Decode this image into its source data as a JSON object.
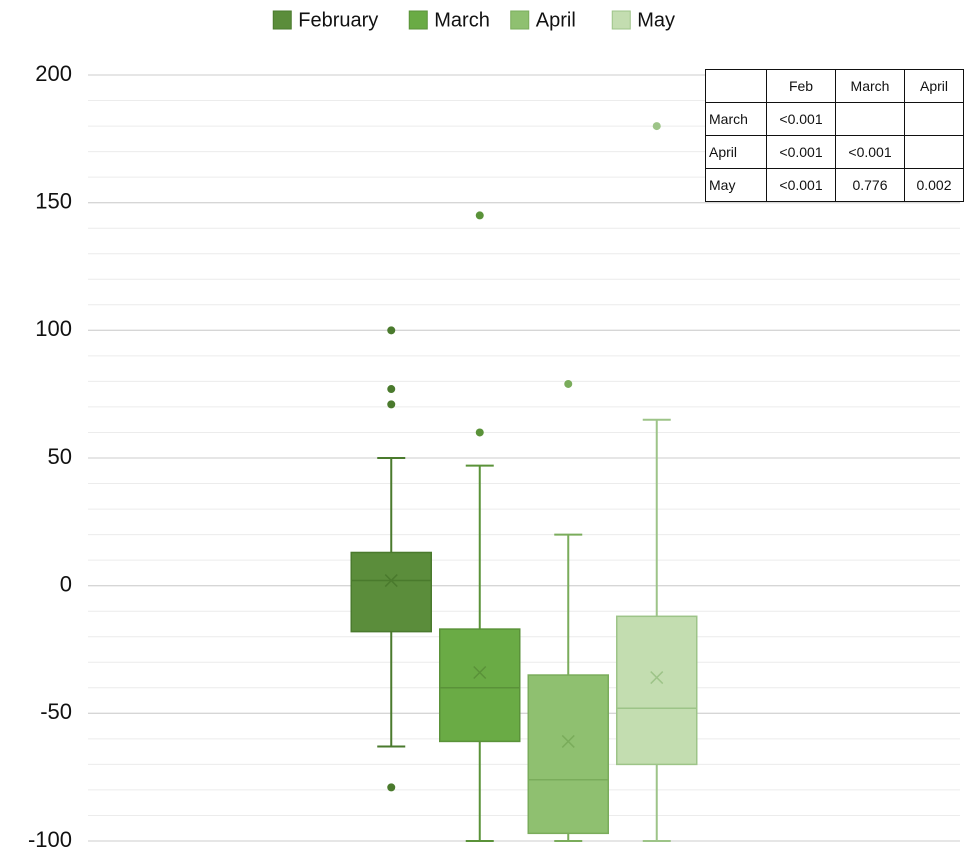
{
  "chart_data": {
    "type": "box",
    "ylim": [
      -100,
      200
    ],
    "yticks": [
      -100,
      -50,
      0,
      50,
      100,
      150,
      200
    ],
    "minor_yticks": [
      -90,
      -80,
      -70,
      -60,
      -40,
      -30,
      -20,
      -10,
      10,
      20,
      30,
      40,
      60,
      70,
      80,
      90,
      110,
      120,
      130,
      140,
      160,
      170,
      180,
      190
    ],
    "grid": true,
    "legend": "top",
    "series": [
      {
        "name": "February",
        "color": "#5b8d3b",
        "line_color": "#4a7a2d",
        "min": -63,
        "q1": -18,
        "median": 2,
        "q3": 13,
        "max": 50,
        "mean": 2,
        "outliers": [
          100,
          77,
          71,
          -79
        ]
      },
      {
        "name": "March",
        "color": "#6aab45",
        "line_color": "#5a9239",
        "min": -100,
        "q1": -61,
        "median": -40,
        "q3": -17,
        "max": 47,
        "mean": -34,
        "outliers": [
          145,
          60
        ]
      },
      {
        "name": "April",
        "color": "#8fc070",
        "line_color": "#7aac5b",
        "min": -100,
        "q1": -97,
        "median": -76,
        "q3": -35,
        "max": 20,
        "mean": -61,
        "outliers": [
          79
        ]
      },
      {
        "name": "May",
        "color": "#c3ddb0",
        "line_color": "#9dc488",
        "min": -100,
        "q1": -70,
        "median": -48,
        "q3": -12,
        "max": 65,
        "mean": -36,
        "outliers": [
          180
        ]
      }
    ]
  },
  "table": {
    "columns": [
      "Feb",
      "March",
      "April"
    ],
    "rows": [
      {
        "label": "March",
        "cells": [
          "<0.001",
          null,
          null
        ]
      },
      {
        "label": "April",
        "cells": [
          "<0.001",
          "<0.001",
          null
        ]
      },
      {
        "label": "May",
        "cells": [
          "<0.001",
          "0.776",
          "0.002"
        ]
      }
    ]
  }
}
